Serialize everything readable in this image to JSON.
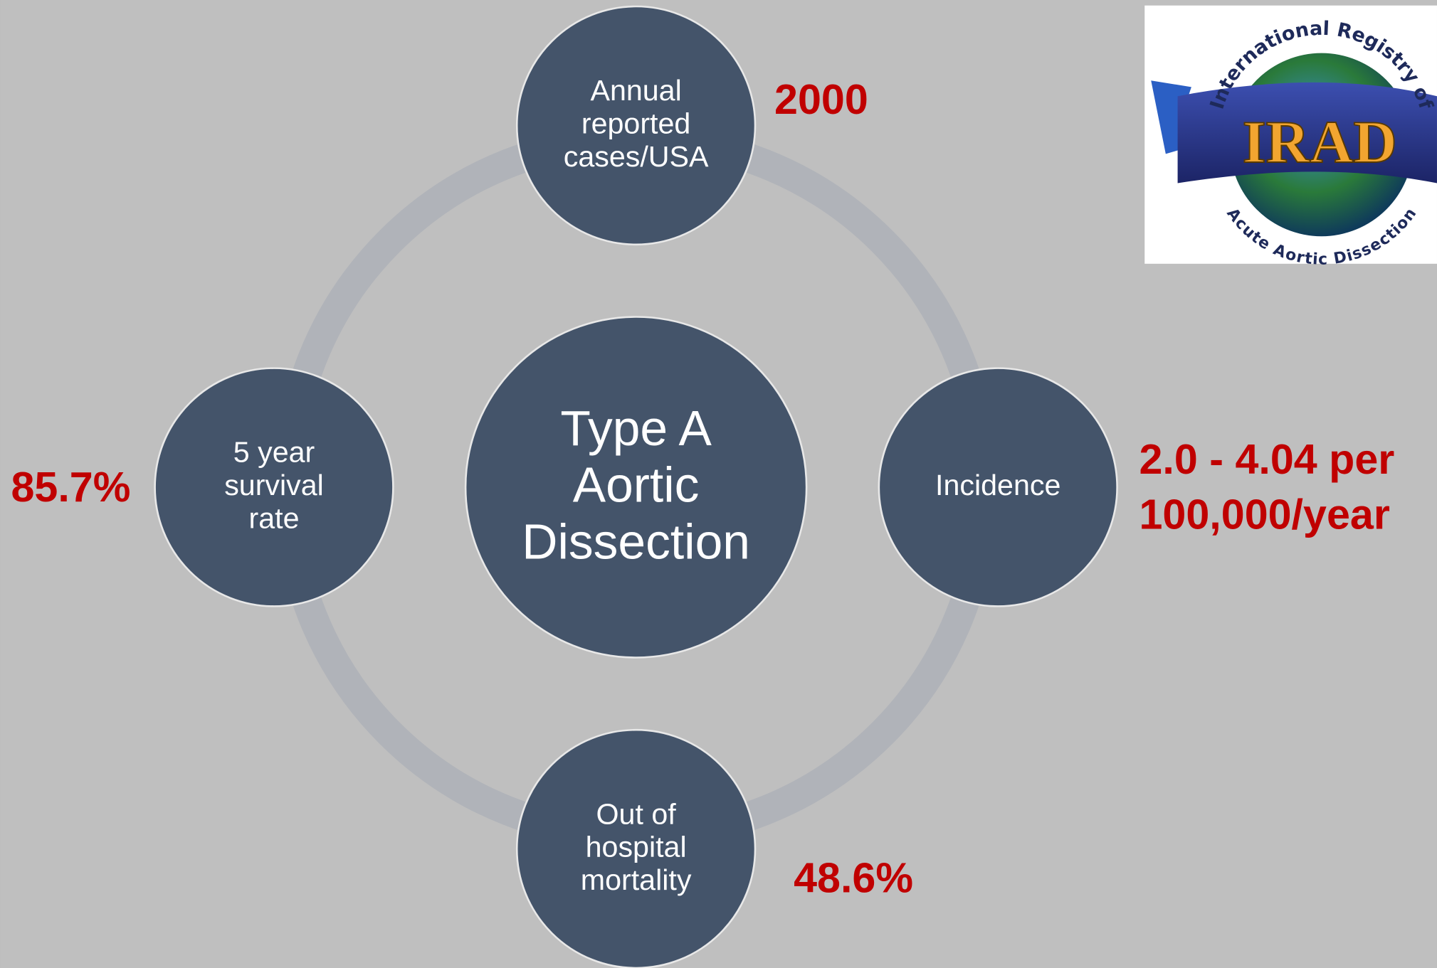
{
  "center": {
    "label": [
      "Type A",
      "Aortic",
      "Dissection"
    ]
  },
  "nodes": [
    {
      "label": [
        "Annual",
        "reported",
        "cases/USA"
      ],
      "value": [
        "2000"
      ]
    },
    {
      "label": [
        "Incidence"
      ],
      "value": [
        "2.0 - 4.04 per",
        "100,000/year"
      ]
    },
    {
      "label": [
        "Out of",
        "hospital",
        "mortality"
      ],
      "value": [
        "48.6%"
      ]
    },
    {
      "label": [
        "5 year",
        "survival",
        "rate"
      ],
      "value": [
        "85.7%"
      ]
    }
  ],
  "logo": {
    "top": "International Registry of",
    "name": "IRAD",
    "bottom": "Acute Aortic Dissection"
  }
}
